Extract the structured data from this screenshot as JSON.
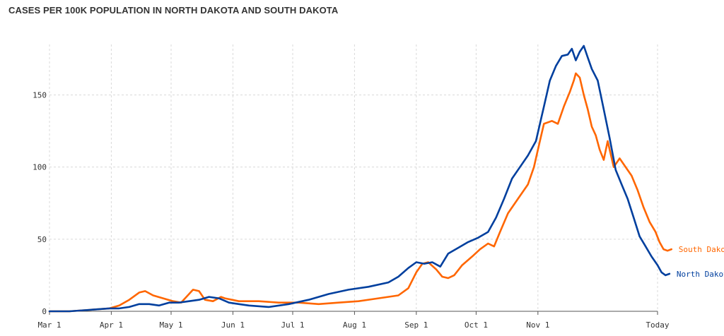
{
  "chart_data": {
    "type": "line",
    "title": "CASES PER 100K POPULATION IN NORTH DAKOTA AND SOUTH DAKOTA",
    "xlabel": "",
    "ylabel": "",
    "ylim": [
      0,
      185
    ],
    "yticks": [
      0,
      50,
      100,
      150
    ],
    "grid": true,
    "x_ticks": [
      {
        "label": "Mar 1",
        "day": 0
      },
      {
        "label": "Apr 1",
        "day": 31
      },
      {
        "label": "May 1",
        "day": 61
      },
      {
        "label": "Jun 1",
        "day": 92
      },
      {
        "label": "Jul 1",
        "day": 122
      },
      {
        "label": "Aug 1",
        "day": 153
      },
      {
        "label": "Sep 1",
        "day": 184
      },
      {
        "label": "Oct 1",
        "day": 214
      },
      {
        "label": "Nov 1",
        "day": 245
      },
      {
        "label": "Today",
        "day": 305
      }
    ],
    "series": [
      {
        "name": "South Dakota",
        "color": "#ff6600",
        "points": [
          [
            0,
            0
          ],
          [
            10,
            0
          ],
          [
            20,
            1
          ],
          [
            30,
            2
          ],
          [
            35,
            4
          ],
          [
            40,
            8
          ],
          [
            45,
            13
          ],
          [
            48,
            14
          ],
          [
            52,
            11
          ],
          [
            57,
            9
          ],
          [
            62,
            7
          ],
          [
            66,
            6
          ],
          [
            70,
            12
          ],
          [
            72,
            15
          ],
          [
            75,
            14
          ],
          [
            78,
            8
          ],
          [
            82,
            7
          ],
          [
            86,
            10
          ],
          [
            88,
            9
          ],
          [
            95,
            7
          ],
          [
            105,
            7
          ],
          [
            115,
            6
          ],
          [
            125,
            6
          ],
          [
            135,
            5
          ],
          [
            145,
            6
          ],
          [
            155,
            7
          ],
          [
            165,
            9
          ],
          [
            175,
            11
          ],
          [
            180,
            16
          ],
          [
            184,
            27
          ],
          [
            187,
            33
          ],
          [
            190,
            34
          ],
          [
            194,
            29
          ],
          [
            197,
            24
          ],
          [
            200,
            23
          ],
          [
            203,
            25
          ],
          [
            207,
            32
          ],
          [
            212,
            38
          ],
          [
            216,
            43
          ],
          [
            220,
            47
          ],
          [
            223,
            45
          ],
          [
            226,
            55
          ],
          [
            230,
            68
          ],
          [
            235,
            78
          ],
          [
            240,
            88
          ],
          [
            243,
            100
          ],
          [
            246,
            118
          ],
          [
            248,
            130
          ],
          [
            252,
            132
          ],
          [
            255,
            130
          ],
          [
            258,
            142
          ],
          [
            261,
            152
          ],
          [
            263,
            160
          ],
          [
            264,
            165
          ],
          [
            266,
            162
          ],
          [
            268,
            150
          ],
          [
            270,
            140
          ],
          [
            272,
            128
          ],
          [
            274,
            122
          ],
          [
            276,
            112
          ],
          [
            278,
            105
          ],
          [
            280,
            118
          ],
          [
            283,
            100
          ],
          [
            286,
            106
          ],
          [
            289,
            100
          ],
          [
            292,
            94
          ],
          [
            295,
            84
          ],
          [
            298,
            72
          ],
          [
            301,
            62
          ],
          [
            304,
            55
          ],
          [
            306,
            48
          ],
          [
            308,
            43
          ],
          [
            310,
            42
          ],
          [
            312,
            43
          ]
        ]
      },
      {
        "name": "North Dakota",
        "color": "#003f9e",
        "points": [
          [
            0,
            0
          ],
          [
            10,
            0
          ],
          [
            20,
            1
          ],
          [
            30,
            2
          ],
          [
            35,
            2
          ],
          [
            40,
            3
          ],
          [
            45,
            5
          ],
          [
            50,
            5
          ],
          [
            55,
            4
          ],
          [
            60,
            6
          ],
          [
            65,
            6
          ],
          [
            70,
            7
          ],
          [
            75,
            8
          ],
          [
            80,
            10
          ],
          [
            85,
            9
          ],
          [
            90,
            6
          ],
          [
            95,
            5
          ],
          [
            100,
            4
          ],
          [
            110,
            3
          ],
          [
            120,
            5
          ],
          [
            130,
            8
          ],
          [
            140,
            12
          ],
          [
            150,
            15
          ],
          [
            160,
            17
          ],
          [
            170,
            20
          ],
          [
            175,
            24
          ],
          [
            180,
            30
          ],
          [
            184,
            34
          ],
          [
            188,
            33
          ],
          [
            192,
            34
          ],
          [
            196,
            31
          ],
          [
            200,
            40
          ],
          [
            205,
            44
          ],
          [
            210,
            48
          ],
          [
            215,
            51
          ],
          [
            220,
            55
          ],
          [
            224,
            65
          ],
          [
            228,
            78
          ],
          [
            232,
            92
          ],
          [
            236,
            100
          ],
          [
            240,
            108
          ],
          [
            244,
            118
          ],
          [
            248,
            142
          ],
          [
            251,
            160
          ],
          [
            254,
            170
          ],
          [
            257,
            177
          ],
          [
            260,
            178
          ],
          [
            262,
            182
          ],
          [
            264,
            174
          ],
          [
            266,
            180
          ],
          [
            268,
            184
          ],
          [
            270,
            176
          ],
          [
            272,
            168
          ],
          [
            275,
            160
          ],
          [
            278,
            140
          ],
          [
            281,
            120
          ],
          [
            284,
            98
          ],
          [
            287,
            88
          ],
          [
            290,
            78
          ],
          [
            293,
            65
          ],
          [
            296,
            52
          ],
          [
            299,
            45
          ],
          [
            302,
            38
          ],
          [
            305,
            32
          ],
          [
            307,
            27
          ],
          [
            309,
            25
          ],
          [
            311,
            26
          ]
        ]
      }
    ]
  }
}
